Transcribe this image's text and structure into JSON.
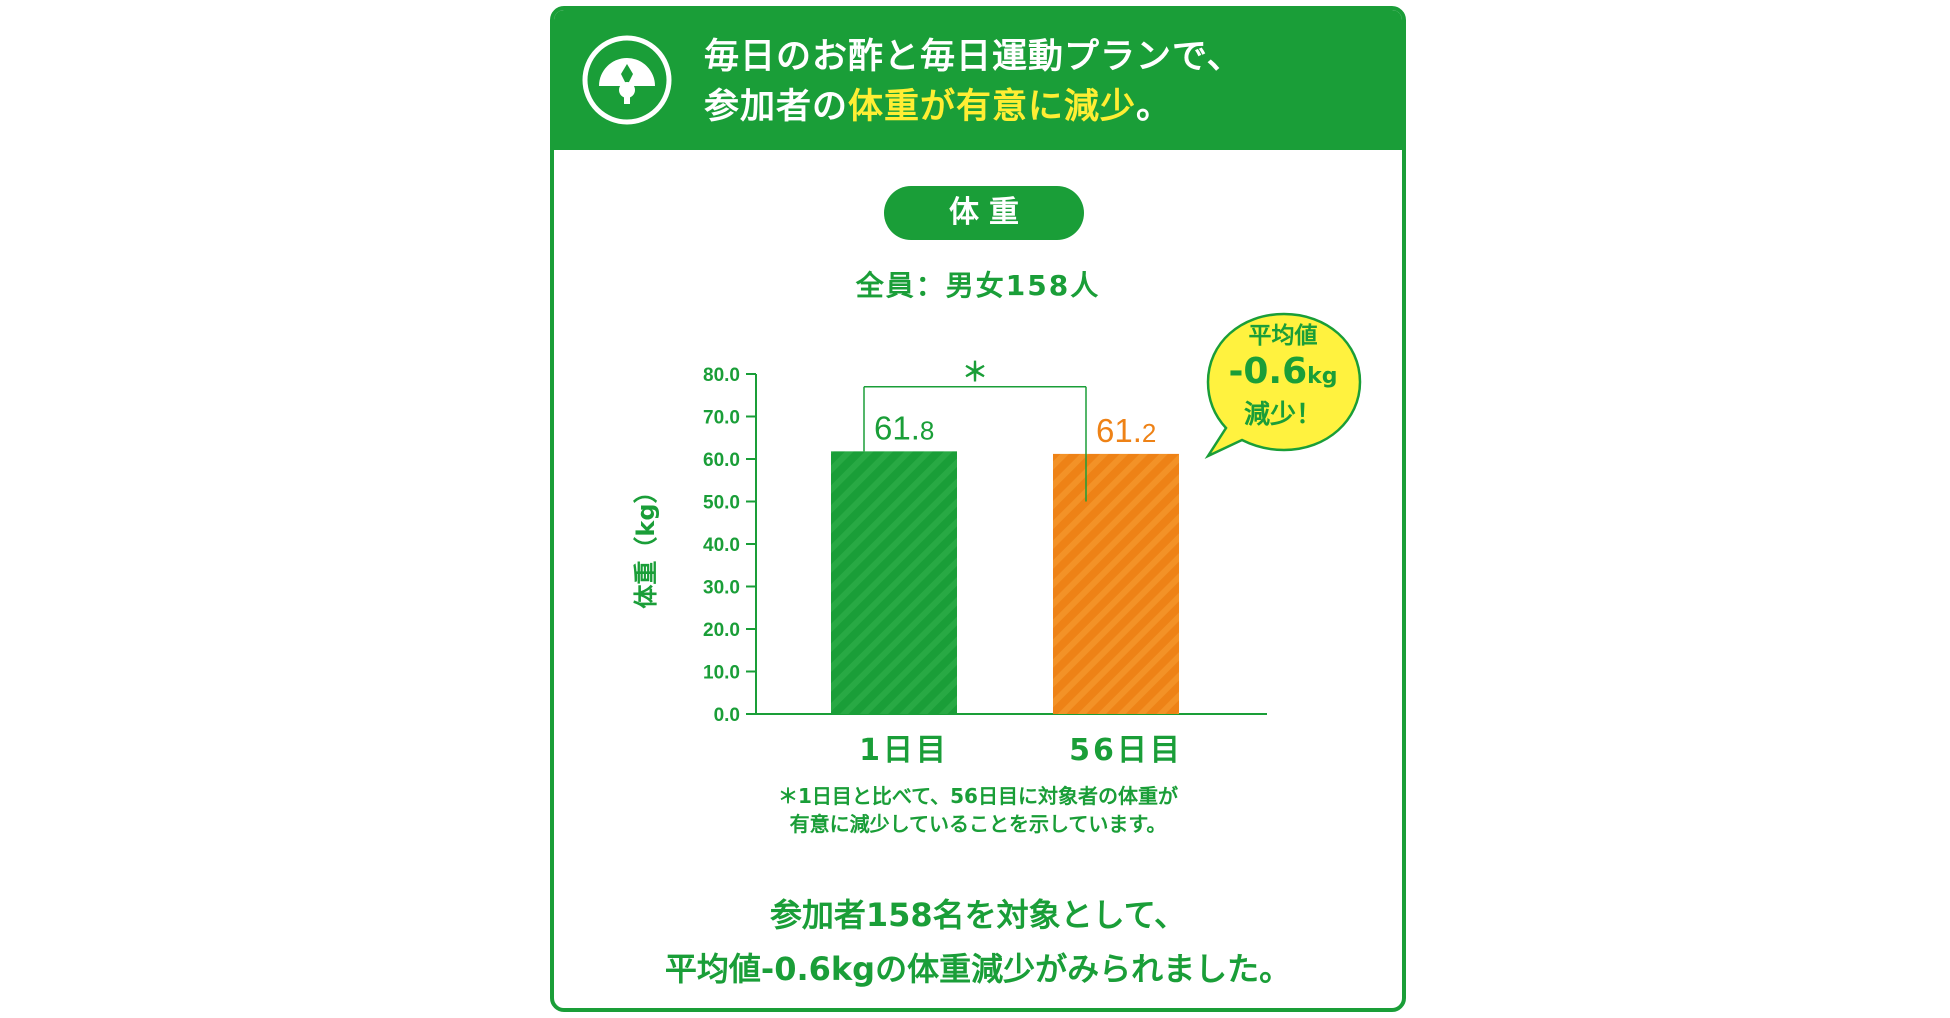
{
  "header": {
    "line1": "毎日のお酢と毎日運動プランで、",
    "line2_prefix": "参加者の",
    "line2_highlight": "体重が有意に減少",
    "line2_suffix": "。",
    "icon": "gauge-icon"
  },
  "pill_label": "体重",
  "subject": "全員：男女158人",
  "badge": {
    "line1": "平均値",
    "value": "-0.6",
    "unit": "kg",
    "line3": "減少！"
  },
  "note": {
    "line1": "＊1日目と比べて、56日目に対象者の体重が",
    "line2": "有意に減少していることを示しています。"
  },
  "summary": {
    "line1": "参加者158名を対象として、",
    "line2": "平均値-0.6kgの体重減少がみられました。"
  },
  "colors": {
    "green": "#1a9e38",
    "orange": "#ee8216",
    "yellow": "#ffee33"
  },
  "chart_data": {
    "type": "bar",
    "ylabel": "体重（kg）",
    "ylim": [
      0,
      80
    ],
    "yticks": [
      "0.0",
      "10.0",
      "20.0",
      "30.0",
      "40.0",
      "50.0",
      "60.0",
      "70.0",
      "80.0"
    ],
    "categories": [
      "1日目",
      "56日目"
    ],
    "values": [
      61.8,
      61.2
    ],
    "value_labels": [
      {
        "main": "61.",
        "decimal": "8"
      },
      {
        "main": "61.",
        "decimal": "2"
      }
    ],
    "error_bars": [
      {
        "low": 61.8,
        "high": 77.0
      },
      {
        "low": 50.0,
        "high": 77.0
      }
    ],
    "significance": "＊",
    "grid": false
  }
}
